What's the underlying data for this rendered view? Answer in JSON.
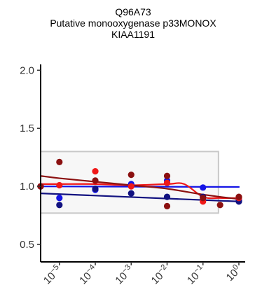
{
  "chart_data": {
    "type": "scatter",
    "title_lines": [
      "Q96A73",
      "Putative monooxygenase p33MONOX",
      "KIAA1191"
    ],
    "xlabel": "",
    "ylabel": "",
    "x_scale": "log10",
    "x_ticks": [
      {
        "value": 1e-05,
        "base": "10",
        "exp": "−5"
      },
      {
        "value": 0.0001,
        "base": "10",
        "exp": "−4"
      },
      {
        "value": 0.001,
        "base": "10",
        "exp": "−3"
      },
      {
        "value": 0.01,
        "base": "10",
        "exp": "−2"
      },
      {
        "value": 0.1,
        "base": "10",
        "exp": "−1"
      },
      {
        "value": 1,
        "base": "10",
        "exp": "0"
      }
    ],
    "y_ticks": [
      {
        "value": 0.5,
        "label": "0.5"
      },
      {
        "value": 1.0,
        "label": "1.0"
      },
      {
        "value": 1.5,
        "label": "1.5"
      },
      {
        "value": 2.0,
        "label": "2.0"
      }
    ],
    "xlim": [
      3e-06,
      1.5
    ],
    "ylim": [
      0.35,
      2.05
    ],
    "grid": false,
    "shaded_box": {
      "x": [
        3e-06,
        0.27
      ],
      "y": [
        0.77,
        1.3
      ],
      "fill": "#f7f7f7",
      "stroke": "#c8c8c8"
    },
    "series": [
      {
        "color": "#1515e6",
        "points": [
          [
            3e-06,
            1.0
          ],
          [
            1e-05,
            0.9
          ],
          [
            0.0001,
            0.97
          ],
          [
            0.001,
            1.02
          ],
          [
            0.01,
            1.05
          ],
          [
            0.1,
            0.99
          ],
          [
            1,
            0.88
          ]
        ],
        "fit": {
          "kind": "line",
          "points": [
            [
              3e-06,
              1.0
            ],
            [
              1,
              0.995
            ]
          ]
        }
      },
      {
        "color": "#121280",
        "points": [
          [
            3e-06,
            1.0
          ],
          [
            1e-05,
            0.84
          ],
          [
            0.0001,
            0.98
          ],
          [
            0.001,
            0.94
          ],
          [
            0.01,
            0.91
          ],
          [
            0.1,
            0.91
          ],
          [
            1,
            0.87
          ]
        ],
        "fit": {
          "kind": "line",
          "points": [
            [
              3e-06,
              0.94
            ],
            [
              1,
              0.87
            ]
          ]
        }
      },
      {
        "color": "#f01818",
        "points": [
          [
            3e-06,
            1.0
          ],
          [
            1e-05,
            1.01
          ],
          [
            0.0001,
            1.13
          ],
          [
            0.001,
            1.0
          ],
          [
            0.01,
            1.03
          ],
          [
            0.1,
            0.87
          ],
          [
            1,
            0.9
          ]
        ],
        "fit": {
          "kind": "smooth",
          "points": [
            [
              3e-06,
              1.02
            ],
            [
              1e-05,
              1.02
            ],
            [
              0.0001,
              1.02
            ],
            [
              0.001,
              1.01
            ],
            [
              0.01,
              1.02
            ],
            [
              0.03,
              1.02
            ],
            [
              0.1,
              0.91
            ],
            [
              0.3,
              0.9
            ],
            [
              1,
              0.9
            ]
          ]
        }
      },
      {
        "color": "#8b1010",
        "points": [
          [
            3e-06,
            1.0
          ],
          [
            1e-05,
            1.21
          ],
          [
            0.0001,
            1.05
          ],
          [
            0.001,
            1.1
          ],
          [
            0.01,
            0.83
          ],
          [
            0.01,
            1.09
          ],
          [
            0.1,
            0.9
          ],
          [
            0.3,
            0.84
          ],
          [
            1,
            0.91
          ]
        ],
        "fit": {
          "kind": "smooth",
          "points": [
            [
              3e-06,
              1.09
            ],
            [
              1e-05,
              1.07
            ],
            [
              0.0001,
              1.04
            ],
            [
              0.001,
              1.01
            ],
            [
              0.01,
              0.98
            ],
            [
              0.1,
              0.93
            ],
            [
              1,
              0.89
            ]
          ]
        }
      }
    ]
  }
}
